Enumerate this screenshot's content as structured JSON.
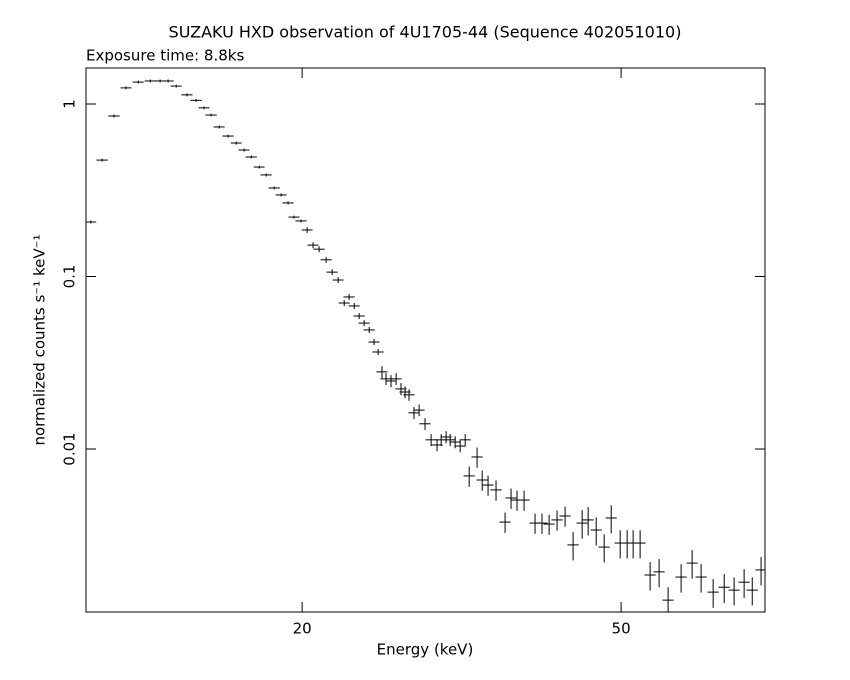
{
  "chart_data": {
    "type": "scatter",
    "title": "SUZAKU HXD observation of 4U1705-44 (Sequence 402051010)",
    "subtitle": "Exposure time: 8.8ks",
    "x_label": "Energy (keV)",
    "y_label": "normalized counts s⁻¹ keV⁻¹",
    "x_scale": "log",
    "y_scale": "log",
    "color": "#000000",
    "xlim": [
      10.75,
      75.6
    ],
    "ylim": [
      0.001135,
      1.617
    ],
    "xticks": [
      20,
      50
    ],
    "yticks": [
      1,
      0.1,
      0.01
    ],
    "x": [
      10.9,
      11.26,
      11.65,
      12.06,
      12.49,
      12.93,
      13.3,
      13.61,
      13.93,
      14.37,
      14.75,
      15.09,
      15.4,
      15.76,
      16.17,
      16.55,
      16.93,
      17.28,
      17.68,
      18.04,
      18.46,
      18.83,
      19.21,
      19.54,
      19.94,
      20.29,
      20.64,
      21.0,
      21.43,
      21.8,
      22.18,
      22.57,
      22.89,
      23.23,
      23.56,
      23.9,
      24.25,
      24.59,
      24.88,
      25.16,
      25.45,
      25.82,
      26.2,
      26.57,
      26.88,
      27.19,
      27.58,
      27.99,
      28.47,
      28.97,
      29.47,
      29.82,
      30.25,
      30.6,
      31.04,
      31.49,
      31.95,
      32.32,
      33.06,
      33.55,
      34.12,
      34.91,
      35.83,
      36.45,
      37.08,
      37.84,
      39.05,
      39.84,
      40.66,
      41.6,
      42.57,
      43.56,
      44.71,
      45.49,
      46.55,
      47.63,
      48.6,
      49.87,
      50.88,
      51.76,
      52.81,
      54.35,
      55.77,
      57.23,
      59.41,
      61.32,
      62.92,
      65.14,
      67.24,
      69.18,
      71.2,
      72.88,
      74.75
    ],
    "x_err": [
      0.17,
      0.18,
      0.19,
      0.19,
      0.2,
      0.21,
      0.21,
      0.22,
      0.22,
      0.23,
      0.24,
      0.24,
      0.25,
      0.25,
      0.26,
      0.26,
      0.27,
      0.28,
      0.28,
      0.29,
      0.3,
      0.3,
      0.31,
      0.31,
      0.32,
      0.32,
      0.33,
      0.34,
      0.34,
      0.35,
      0.35,
      0.36,
      0.37,
      0.37,
      0.38,
      0.38,
      0.39,
      0.39,
      0.4,
      0.4,
      0.41,
      0.41,
      0.42,
      0.43,
      0.43,
      0.44,
      0.44,
      0.45,
      0.46,
      0.46,
      0.47,
      0.48,
      0.48,
      0.49,
      0.5,
      0.5,
      0.51,
      0.52,
      0.53,
      0.54,
      0.55,
      0.56,
      0.57,
      0.58,
      0.59,
      0.61,
      0.62,
      0.64,
      0.65,
      0.67,
      0.68,
      0.7,
      0.72,
      0.73,
      0.74,
      0.76,
      0.78,
      0.8,
      0.81,
      0.83,
      0.84,
      0.87,
      0.89,
      0.92,
      0.95,
      0.98,
      1.01,
      1.04,
      1.08,
      1.11,
      1.14,
      1.17,
      1.2
    ],
    "values": [
      0.207,
      0.473,
      0.852,
      1.24,
      1.34,
      1.36,
      1.36,
      1.36,
      1.27,
      1.13,
      1.05,
      0.95,
      0.863,
      0.736,
      0.652,
      0.594,
      0.541,
      0.493,
      0.431,
      0.388,
      0.326,
      0.297,
      0.267,
      0.221,
      0.21,
      0.186,
      0.152,
      0.144,
      0.125,
      0.106,
      0.0954,
      0.0702,
      0.0761,
      0.0675,
      0.059,
      0.0537,
      0.049,
      0.0417,
      0.0365,
      0.028,
      0.0255,
      0.0248,
      0.0255,
      0.0223,
      0.0214,
      0.0206,
      0.0162,
      0.0168,
      0.014,
      0.0113,
      0.01055,
      0.0113,
      0.01174,
      0.0113,
      0.01098,
      0.0104,
      0.0113,
      0.00698,
      0.00899,
      0.00661,
      0.00618,
      0.00579,
      0.00377,
      0.0052,
      0.00506,
      0.00506,
      0.00372,
      0.00372,
      0.00367,
      0.00388,
      0.00409,
      0.00278,
      0.00372,
      0.00388,
      0.00339,
      0.0027,
      0.00398,
      0.00285,
      0.00285,
      0.00285,
      0.00285,
      0.00186,
      0.00194,
      0.00133,
      0.00181,
      0.00218,
      0.00181,
      0.00148,
      0.00158,
      0.00152,
      0.00169,
      0.00152,
      0.00199
    ],
    "y_err": [
      0.0041,
      0.0095,
      0.017,
      0.025,
      0.027,
      0.027,
      0.027,
      0.027,
      0.025,
      0.023,
      0.021,
      0.019,
      0.017,
      0.015,
      0.013,
      0.012,
      0.011,
      0.0099,
      0.0086,
      0.0078,
      0.0065,
      0.0059,
      0.0053,
      0.0044,
      0.0042,
      0.0074,
      0.0061,
      0.0058,
      0.005,
      0.0042,
      0.0038,
      0.0028,
      0.003,
      0.0027,
      0.0024,
      0.0021,
      0.002,
      0.0017,
      0.0015,
      0.0022,
      0.002,
      0.002,
      0.002,
      0.0018,
      0.0017,
      0.0016,
      0.0013,
      0.0013,
      0.0011,
      0.0009,
      0.00084,
      0.0009,
      0.00094,
      0.0009,
      0.00088,
      0.00083,
      0.0009,
      0.00094,
      0.0012,
      0.00089,
      0.00083,
      0.00078,
      0.00051,
      0.0007,
      0.00068,
      0.00068,
      0.0005,
      0.0005,
      0.00049,
      0.00052,
      0.00055,
      0.00052,
      0.0007,
      0.00073,
      0.00063,
      0.0005,
      0.00074,
      0.00053,
      0.00053,
      0.00053,
      0.00053,
      0.00035,
      0.00036,
      0.00025,
      0.00034,
      0.00041,
      0.00034,
      0.00028,
      0.0003,
      0.00028,
      0.00032,
      0.00028,
      0.00037
    ]
  }
}
